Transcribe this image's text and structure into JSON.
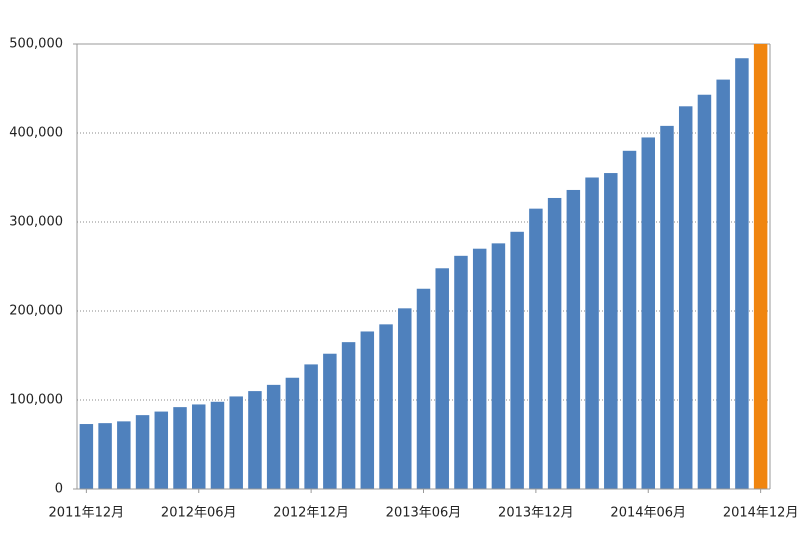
{
  "chart_data": {
    "type": "bar",
    "categories": [
      "2011年12月",
      null,
      null,
      null,
      null,
      null,
      "2012年06月",
      null,
      null,
      null,
      null,
      null,
      "2012年12月",
      null,
      null,
      null,
      null,
      null,
      "2013年06月",
      null,
      null,
      null,
      null,
      null,
      "2013年12月",
      null,
      null,
      null,
      null,
      null,
      "2014年06月",
      null,
      null,
      null,
      null,
      null,
      "2014年12月"
    ],
    "values": [
      73000,
      74000,
      76000,
      83000,
      87000,
      92000,
      95000,
      98000,
      104000,
      110000,
      117000,
      125000,
      140000,
      152000,
      165000,
      177000,
      185000,
      203000,
      225000,
      248000,
      262000,
      270000,
      276000,
      289000,
      315000,
      327000,
      336000,
      350000,
      355000,
      380000,
      395000,
      408000,
      430000,
      443000,
      460000,
      484000,
      500000
    ],
    "color": "#4f81bd",
    "colors": [
      "#4f81bd",
      "#4f81bd",
      "#4f81bd",
      "#4f81bd",
      "#4f81bd",
      "#4f81bd",
      "#4f81bd",
      "#4f81bd",
      "#4f81bd",
      "#4f81bd",
      "#4f81bd",
      "#4f81bd",
      "#4f81bd",
      "#4f81bd",
      "#4f81bd",
      "#4f81bd",
      "#4f81bd",
      "#4f81bd",
      "#4f81bd",
      "#4f81bd",
      "#4f81bd",
      "#4f81bd",
      "#4f81bd",
      "#4f81bd",
      "#4f81bd",
      "#4f81bd",
      "#4f81bd",
      "#4f81bd",
      "#4f81bd",
      "#4f81bd",
      "#4f81bd",
      "#4f81bd",
      "#4f81bd",
      "#4f81bd",
      "#4f81bd",
      "#4f81bd",
      "#f0850f"
    ],
    "ylim": [
      0,
      500000
    ],
    "yticks": [
      0,
      {
        "value": 100000,
        "label": "100,000"
      },
      {
        "value": 200000,
        "label": "200,000"
      },
      {
        "value": 300000,
        "label": "300,000"
      },
      {
        "value": 400000,
        "label": "400,000"
      },
      {
        "value": 500000,
        "label": "500,000"
      }
    ],
    "grid": true
  }
}
